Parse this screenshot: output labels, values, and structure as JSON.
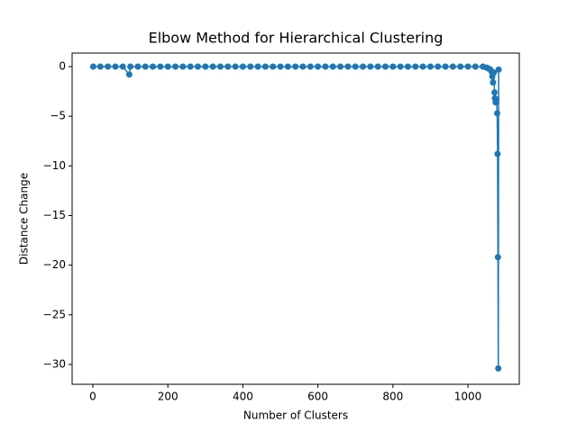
{
  "chart_data": {
    "type": "line",
    "title": "Elbow Method for Hierarchical Clustering",
    "x_label": "Number of Clusters",
    "y_label": "Distance Change",
    "x": [
      1,
      20,
      40,
      60,
      80,
      97,
      100,
      120,
      140,
      160,
      180,
      200,
      220,
      240,
      260,
      280,
      300,
      320,
      340,
      360,
      380,
      400,
      420,
      440,
      460,
      480,
      500,
      520,
      540,
      560,
      580,
      600,
      620,
      640,
      660,
      680,
      700,
      720,
      740,
      760,
      780,
      800,
      820,
      840,
      860,
      880,
      900,
      920,
      940,
      960,
      980,
      1000,
      1020,
      1040,
      1050,
      1055,
      1060,
      1063,
      1065,
      1067,
      1069,
      1071,
      1072,
      1074,
      1076,
      1078,
      1079,
      1080,
      1081,
      1082
    ],
    "series": [
      {
        "color": "#1f77b4",
        "values": [
          0,
          0,
          0,
          0,
          0,
          -0.8,
          0,
          0,
          0,
          0,
          0,
          0,
          0,
          0,
          0,
          0,
          0,
          0,
          0,
          0,
          0,
          0,
          0,
          0,
          0,
          0,
          0,
          0,
          0,
          0,
          0,
          0,
          0,
          0,
          0,
          0,
          0,
          0,
          0,
          0,
          0,
          0,
          0,
          0,
          0,
          0,
          0,
          0,
          0,
          0,
          0,
          0,
          0,
          0,
          -0.1,
          -0.2,
          -0.3,
          -0.5,
          -1,
          -1.6,
          -0.6,
          -2.6,
          -3.2,
          -3.6,
          -3.3,
          -4.7,
          -8.8,
          -19.2,
          -30.4,
          -0.3
        ]
      }
    ],
    "xlim": [
      -55.3,
      1137
    ],
    "ylim": [
      -32.0,
      1.36
    ],
    "xticks": [
      0,
      200,
      400,
      600,
      800,
      1000
    ],
    "yticks": [
      0,
      {
        "value": -5,
        "label": "−5"
      },
      {
        "value": -10,
        "label": "−10"
      },
      {
        "value": -15,
        "label": "−15"
      },
      {
        "value": -20,
        "label": "−20"
      },
      {
        "value": -25,
        "label": "−25"
      },
      {
        "value": -30,
        "label": "−30"
      }
    ],
    "markers": true
  }
}
